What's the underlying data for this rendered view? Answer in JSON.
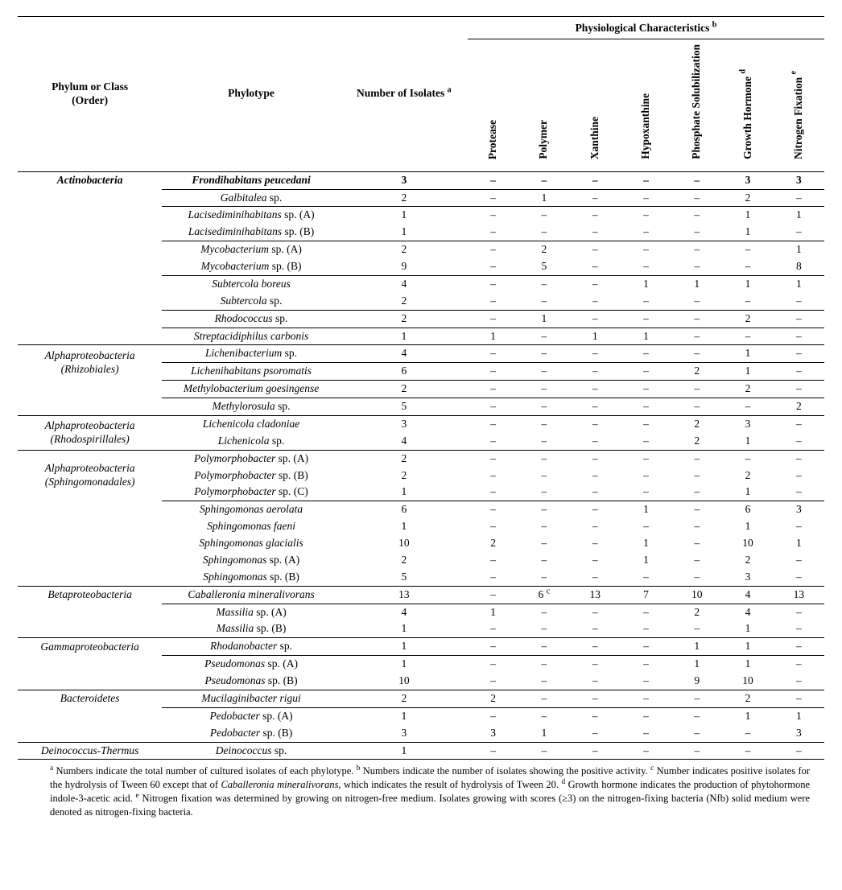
{
  "header": {
    "spanner": "Physiological Characteristics",
    "spanner_sup": "b",
    "phylum": "Phylum or Class",
    "phylum_sub": "(Order)",
    "phylotype": "Phylotype",
    "isolates": "Number of Isolates",
    "isolates_sup": "a",
    "chars": [
      {
        "label": "Protease",
        "sup": ""
      },
      {
        "label": "Polymer",
        "sup": ""
      },
      {
        "label": "Xanthine",
        "sup": ""
      },
      {
        "label": "Hypoxanthine",
        "sup": ""
      },
      {
        "label": "Phosphate Solubilization",
        "sup": ""
      },
      {
        "label": "Growth Hormone",
        "sup": "d"
      },
      {
        "label": "Nitrogen Fixation",
        "sup": "e"
      }
    ]
  },
  "rows": [
    {
      "section": true,
      "bold": true,
      "phylum": "Actinobacteria",
      "phylotype": "Frondihabitans peucedani",
      "iso": "3",
      "v": [
        "–",
        "–",
        "–",
        "–",
        "–",
        "3",
        "3"
      ]
    },
    {
      "group": true,
      "phylum": "",
      "phylotype": "Galbitalea sp.",
      "iso": "2",
      "v": [
        "–",
        "1",
        "–",
        "–",
        "–",
        "2",
        "–"
      ]
    },
    {
      "group": true,
      "phylum": "",
      "phylotype": "Lacisediminihabitans sp. (A)",
      "iso": "1",
      "v": [
        "–",
        "–",
        "–",
        "–",
        "–",
        "1",
        "1"
      ]
    },
    {
      "phylum": "",
      "phylotype": "Lacisediminihabitans sp. (B)",
      "iso": "1",
      "v": [
        "–",
        "–",
        "–",
        "–",
        "–",
        "1",
        "–"
      ]
    },
    {
      "group": true,
      "phylum": "",
      "phylotype": "Mycobacterium sp. (A)",
      "iso": "2",
      "v": [
        "–",
        "2",
        "–",
        "–",
        "–",
        "–",
        "1"
      ]
    },
    {
      "phylum": "",
      "phylotype": "Mycobacterium sp. (B)",
      "iso": "9",
      "v": [
        "–",
        "5",
        "–",
        "–",
        "–",
        "–",
        "8"
      ]
    },
    {
      "group": true,
      "phylum": "",
      "phylotype": "Subtercola boreus",
      "iso": "4",
      "v": [
        "–",
        "–",
        "–",
        "1",
        "1",
        "1",
        "1"
      ]
    },
    {
      "phylum": "",
      "phylotype": "Subtercola sp.",
      "iso": "2",
      "v": [
        "–",
        "–",
        "–",
        "–",
        "–",
        "–",
        "–"
      ]
    },
    {
      "group": true,
      "phylum": "",
      "phylotype": "Rhodococcus sp.",
      "iso": "2",
      "v": [
        "–",
        "1",
        "–",
        "–",
        "–",
        "2",
        "–"
      ]
    },
    {
      "group": true,
      "phylum": "",
      "phylotype": "Streptacidiphilus carbonis",
      "iso": "1",
      "v": [
        "1",
        "–",
        "1",
        "1",
        "–",
        "–",
        "–"
      ]
    },
    {
      "section": true,
      "phylum": "Alphaproteobacteria",
      "phylum_sub": "(Rhizobiales)",
      "rowspan": 2,
      "phylotype": "Lichenibacterium sp.",
      "iso": "4",
      "v": [
        "–",
        "–",
        "–",
        "–",
        "–",
        "1",
        "–"
      ]
    },
    {
      "group": true,
      "skip_phylum": true,
      "phylotype": "Lichenihabitans psoromatis",
      "iso": "6",
      "v": [
        "–",
        "–",
        "–",
        "–",
        "2",
        "1",
        "–"
      ]
    },
    {
      "group": true,
      "phylum": "",
      "phylotype": "Methylobacterium goesingense",
      "iso": "2",
      "v": [
        "–",
        "–",
        "–",
        "–",
        "–",
        "2",
        "–"
      ]
    },
    {
      "group": true,
      "phylum": "",
      "phylotype": "Methylorosula sp.",
      "iso": "5",
      "v": [
        "–",
        "–",
        "–",
        "–",
        "–",
        "–",
        "2"
      ]
    },
    {
      "section": true,
      "phylum": "Alphaproteobacteria",
      "phylum_sub": "(Rhodospirillales)",
      "rowspan": 2,
      "phylotype": "Lichenicola cladoniae",
      "iso": "3",
      "v": [
        "–",
        "–",
        "–",
        "–",
        "2",
        "3",
        "–"
      ]
    },
    {
      "skip_phylum": true,
      "phylotype": "Lichenicola sp.",
      "iso": "4",
      "v": [
        "–",
        "–",
        "–",
        "–",
        "2",
        "1",
        "–"
      ]
    },
    {
      "section": true,
      "phylum": "Alphaproteobacteria",
      "phylum_sub": "(Sphingomonadales)",
      "rowspan": 3,
      "phylotype": "Polymorphobacter sp. (A)",
      "iso": "2",
      "v": [
        "–",
        "–",
        "–",
        "–",
        "–",
        "–",
        "–"
      ]
    },
    {
      "skip_phylum": true,
      "phylotype": "Polymorphobacter sp. (B)",
      "iso": "2",
      "v": [
        "–",
        "–",
        "–",
        "–",
        "–",
        "2",
        "–"
      ]
    },
    {
      "skip_phylum": true,
      "phylotype": "Polymorphobacter sp. (C)",
      "iso": "1",
      "v": [
        "–",
        "–",
        "–",
        "–",
        "–",
        "1",
        "–"
      ]
    },
    {
      "group": true,
      "phylum": "",
      "phylotype": "Sphingomonas aerolata",
      "iso": "6",
      "v": [
        "–",
        "–",
        "–",
        "1",
        "–",
        "6",
        "3"
      ]
    },
    {
      "phylum": "",
      "phylotype": "Sphingomonas faeni",
      "iso": "1",
      "v": [
        "–",
        "–",
        "–",
        "–",
        "–",
        "1",
        "–"
      ]
    },
    {
      "phylum": "",
      "phylotype": "Sphingomonas glacialis",
      "iso": "10",
      "v": [
        "2",
        "–",
        "–",
        "1",
        "–",
        "10",
        "1"
      ]
    },
    {
      "phylum": "",
      "phylotype": "Sphingomonas sp. (A)",
      "iso": "2",
      "v": [
        "–",
        "–",
        "–",
        "1",
        "–",
        "2",
        "–"
      ]
    },
    {
      "phylum": "",
      "phylotype": "Sphingomonas sp. (B)",
      "iso": "5",
      "v": [
        "–",
        "–",
        "–",
        "–",
        "–",
        "3",
        "–"
      ]
    },
    {
      "section": true,
      "phylum": "Betaproteobacteria",
      "phylotype": "Caballeronia mineralivorans",
      "iso": "13",
      "v": [
        "–",
        "6 ",
        "13",
        "7",
        "10",
        "4",
        "13"
      ],
      "v_sup": [
        "",
        "c",
        "",
        "",
        "",
        "",
        ""
      ]
    },
    {
      "group": true,
      "phylum": "",
      "phylotype": "Massilia sp. (A)",
      "iso": "4",
      "v": [
        "1",
        "–",
        "–",
        "–",
        "2",
        "4",
        "–"
      ]
    },
    {
      "phylum": "",
      "phylotype": "Massilia sp. (B)",
      "iso": "1",
      "v": [
        "–",
        "–",
        "–",
        "–",
        "–",
        "1",
        "–"
      ]
    },
    {
      "section": true,
      "phylum": "Gammaproteobacteria",
      "phylotype": "Rhodanobacter sp.",
      "iso": "1",
      "v": [
        "–",
        "–",
        "–",
        "–",
        "1",
        "1",
        "–"
      ]
    },
    {
      "group": true,
      "phylum": "",
      "phylotype": "Pseudomonas sp. (A)",
      "iso": "1",
      "v": [
        "–",
        "–",
        "–",
        "–",
        "1",
        "1",
        "–"
      ]
    },
    {
      "phylum": "",
      "phylotype": "Pseudomonas sp. (B)",
      "iso": "10",
      "v": [
        "–",
        "–",
        "–",
        "–",
        "9",
        "10",
        "–"
      ]
    },
    {
      "section": true,
      "phylum": "Bacteroidetes",
      "phylotype": "Mucilaginibacter rigui",
      "iso": "2",
      "v": [
        "2",
        "–",
        "–",
        "–",
        "–",
        "2",
        "–"
      ]
    },
    {
      "group": true,
      "phylum": "",
      "phylotype": "Pedobacter sp. (A)",
      "iso": "1",
      "v": [
        "–",
        "–",
        "–",
        "–",
        "–",
        "1",
        "1"
      ]
    },
    {
      "phylum": "",
      "phylotype": "Pedobacter sp. (B)",
      "iso": "3",
      "v": [
        "3",
        "1",
        "–",
        "–",
        "–",
        "–",
        "3"
      ]
    },
    {
      "section": true,
      "phylum": "Deinococcus-Thermus",
      "phylotype": "Deinococcus sp.",
      "iso": "1",
      "v": [
        "–",
        "–",
        "–",
        "–",
        "–",
        "–",
        "–"
      ]
    }
  ],
  "footnotes": {
    "a": "Numbers indicate the total number of cultured isolates of each phylotype.",
    "b": "Numbers indicate the number of isolates showing the positive activity.",
    "c_pre": "Number indicates positive isolates for the hydrolysis of Tween 60 except that of",
    "c_it": "Caballeronia mineralivorans",
    "c_post": ", which indicates the result of hydrolysis of Tween 20.",
    "d": "Growth hormone indicates the production of phytohormone indole-3-acetic acid.",
    "e": "Nitrogen fixation was determined by growing on nitrogen-free medium. Isolates growing with scores (≥3) on the nitrogen-fixing bacteria (Nfb) solid medium were denoted as nitrogen-fixing bacteria."
  }
}
